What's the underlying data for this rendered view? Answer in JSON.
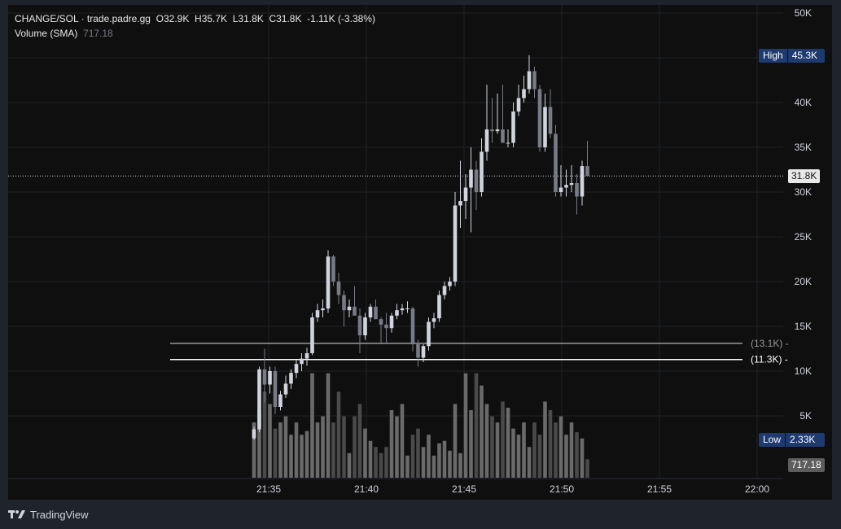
{
  "legend": {
    "symbol": "CHANGE/SOL · trade.padre.gg",
    "o_key": "O",
    "o_val": "32.9K",
    "h_key": "H",
    "h_val": "35.7K",
    "l_key": "L",
    "l_val": "31.8K",
    "c_key": "C",
    "c_val": "31.8K",
    "change": "-1.11K (-3.38%)",
    "vol_label": "Volume (SMA)",
    "vol_value": "717.18"
  },
  "tags": {
    "high_label": "High",
    "high_value": "45.3K",
    "low_label": "Low",
    "low_value": "2.33K",
    "last_price": "31.8K",
    "vol_last": "717.18",
    "line1": "(13.1K)",
    "line2": "(11.3K)"
  },
  "footer": {
    "brand": "TradingView"
  },
  "colors": {
    "up": "#d1d4dc",
    "down": "#787b86",
    "background": "#0f0f10",
    "grid": "#1e2024",
    "frame": "#1f232b"
  },
  "chart_data": {
    "type": "candlestick",
    "x_tick_labels": [
      "21:35",
      "21:40",
      "21:45",
      "21:50",
      "21:55",
      "22:00"
    ],
    "y_tick_labels": [
      "50K",
      "45K",
      "40K",
      "35K",
      "30K",
      "25K",
      "20K",
      "15K",
      "10K",
      "5K"
    ],
    "ylim": [
      0,
      50000
    ],
    "horizontal_lines": [
      13100,
      11300
    ],
    "last_price": 31800,
    "grid": true,
    "candles": [
      [
        2.5,
        3.8,
        2.33,
        3.5
      ],
      [
        3.5,
        10.5,
        3.2,
        10.2
      ],
      [
        10.2,
        12.5,
        6.5,
        8.5
      ],
      [
        8.5,
        10.5,
        7.5,
        10.0
      ],
      [
        10.0,
        10.5,
        5.2,
        6.0
      ],
      [
        6.0,
        7.8,
        5.6,
        7.4
      ],
      [
        7.4,
        9.5,
        7.0,
        8.6
      ],
      [
        8.6,
        10.2,
        8.0,
        9.8
      ],
      [
        9.8,
        11.2,
        9.2,
        10.8
      ],
      [
        10.8,
        12.0,
        10.0,
        11.4
      ],
      [
        11.4,
        12.6,
        10.6,
        12.0
      ],
      [
        12.0,
        16.5,
        11.8,
        16.0
      ],
      [
        16.0,
        17.5,
        15.5,
        16.8
      ],
      [
        16.8,
        18.0,
        16.0,
        17.0
      ],
      [
        17.0,
        23.5,
        16.5,
        22.8
      ],
      [
        22.8,
        23.0,
        19.5,
        20.0
      ],
      [
        20.0,
        21.0,
        17.5,
        18.5
      ],
      [
        18.5,
        19.0,
        15.0,
        16.8
      ],
      [
        16.8,
        18.0,
        16.0,
        17.2
      ],
      [
        17.2,
        19.5,
        16.5,
        16.2
      ],
      [
        16.2,
        17.0,
        12.0,
        14.0
      ],
      [
        14.0,
        16.5,
        13.5,
        16.0
      ],
      [
        16.0,
        17.5,
        15.5,
        17.2
      ],
      [
        17.2,
        18.0,
        15.8,
        15.8
      ],
      [
        15.8,
        16.0,
        13.0,
        15.2
      ],
      [
        15.2,
        16.5,
        13.0,
        14.8
      ],
      [
        14.8,
        16.5,
        14.3,
        16.2
      ],
      [
        16.2,
        17.5,
        15.8,
        16.8
      ],
      [
        16.8,
        17.5,
        16.3,
        17.0
      ],
      [
        17.0,
        17.8,
        16.5,
        17.0
      ],
      [
        17.0,
        17.2,
        12.2,
        13.0
      ],
      [
        13.0,
        13.5,
        10.5,
        11.5
      ],
      [
        11.5,
        13.0,
        11.0,
        12.8
      ],
      [
        12.8,
        16.0,
        12.3,
        15.5
      ],
      [
        15.5,
        16.5,
        14.8,
        15.9
      ],
      [
        15.9,
        19.0,
        15.5,
        18.5
      ],
      [
        18.5,
        20.0,
        18.0,
        19.5
      ],
      [
        19.5,
        20.5,
        19.0,
        20.0
      ],
      [
        20.0,
        30.0,
        19.5,
        28.5
      ],
      [
        28.5,
        33.5,
        26.0,
        29.0
      ],
      [
        29.0,
        32.0,
        27.0,
        30.5
      ],
      [
        30.5,
        35.0,
        25.5,
        32.5
      ],
      [
        32.5,
        33.5,
        28.0,
        30.0
      ],
      [
        30.0,
        36.0,
        29.5,
        34.5
      ],
      [
        34.5,
        42.0,
        33.5,
        37.0
      ],
      [
        37.0,
        40.5,
        35.5,
        36.8
      ],
      [
        36.8,
        41.0,
        36.5,
        37.0
      ],
      [
        37.0,
        42.0,
        35.5,
        35.5
      ],
      [
        35.5,
        37.0,
        35.0,
        35.5
      ],
      [
        35.5,
        40.0,
        35.0,
        39.0
      ],
      [
        39.0,
        42.0,
        38.5,
        40.5
      ],
      [
        40.5,
        43.0,
        40.0,
        41.5
      ],
      [
        41.5,
        45.3,
        41.0,
        43.5
      ],
      [
        43.5,
        44.0,
        40.5,
        41.5
      ],
      [
        41.5,
        42.0,
        34.5,
        35.0
      ],
      [
        35.0,
        41.0,
        34.5,
        39.5
      ],
      [
        39.5,
        41.5,
        36.0,
        36.5
      ],
      [
        36.5,
        37.5,
        29.5,
        30.0
      ],
      [
        30.0,
        33.0,
        29.5,
        30.5
      ],
      [
        30.5,
        32.5,
        29.5,
        30.8
      ],
      [
        30.8,
        33.0,
        30.0,
        31.0
      ],
      [
        31.0,
        32.0,
        27.5,
        29.5
      ],
      [
        29.5,
        33.5,
        28.5,
        32.9
      ],
      [
        32.9,
        35.7,
        31.8,
        31.8
      ]
    ],
    "volume_relative": [
      0.45,
      0.55,
      0.7,
      0.6,
      0.4,
      0.45,
      0.5,
      0.35,
      0.45,
      0.35,
      0.38,
      0.85,
      0.45,
      0.5,
      0.85,
      0.45,
      0.7,
      0.5,
      0.2,
      0.5,
      0.6,
      0.4,
      0.3,
      0.25,
      0.2,
      0.25,
      0.55,
      0.5,
      0.6,
      0.18,
      0.35,
      0.4,
      0.25,
      0.35,
      0.18,
      0.28,
      0.3,
      0.22,
      0.6,
      0.2,
      0.85,
      0.55,
      0.85,
      0.75,
      0.6,
      0.5,
      0.45,
      0.62,
      0.57,
      0.4,
      0.35,
      0.45,
      0.25,
      0.45,
      0.35,
      0.62,
      0.55,
      0.45,
      0.5,
      0.35,
      0.45,
      0.37,
      0.32,
      0.15
    ]
  }
}
